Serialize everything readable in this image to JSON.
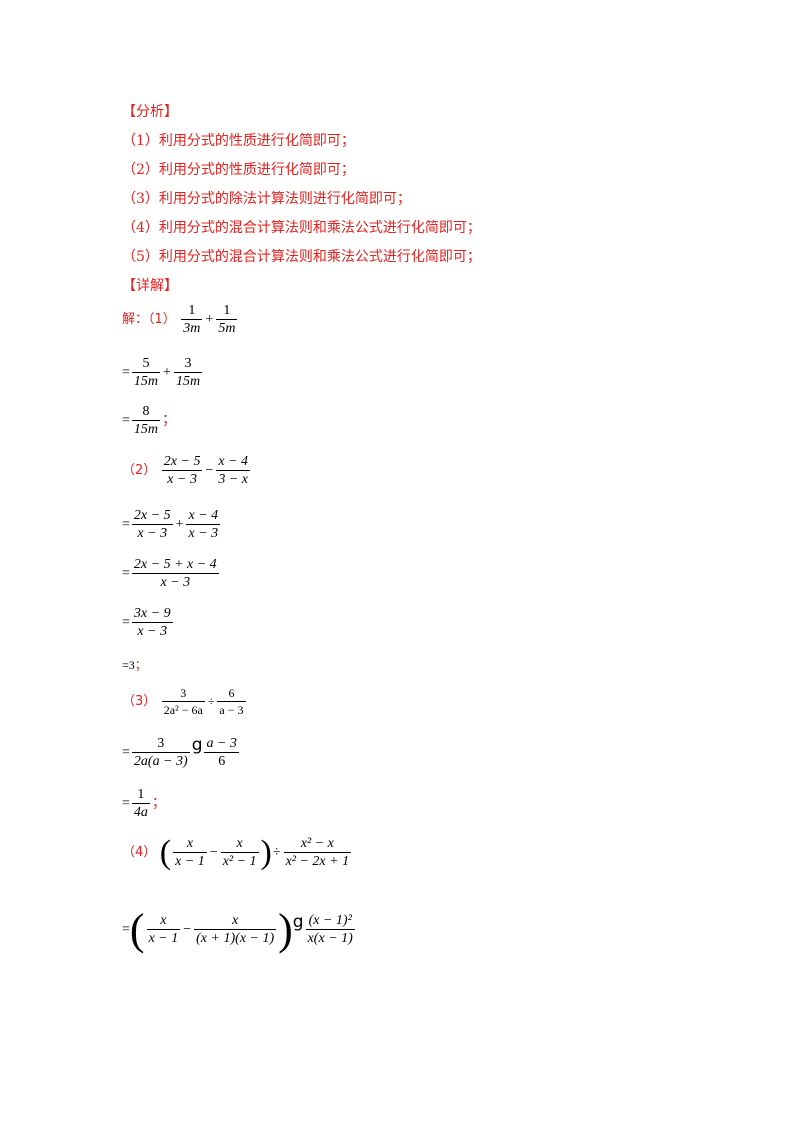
{
  "analysis_heading": "【分析】",
  "analysis_items": [
    "（1）利用分式的性质进行化简即可；",
    "（2）利用分式的性质进行化简即可；",
    "（3）利用分式的除法计算法则进行化简即可；",
    "（4）利用分式的混合计算法则和乘法公式进行化简即可；",
    "（5）利用分式的混合计算法则和乘法公式进行化简即可；"
  ],
  "detail_heading": "【详解】",
  "solution_prefix": "解：",
  "labels": {
    "p1": "（1）",
    "p2": "（2）",
    "p3": "（3）",
    "p4": "（4）"
  },
  "semicolon": "；",
  "eq": "=",
  "p1": {
    "a_num": "1",
    "a_den": "3m",
    "b_num": "1",
    "b_den": "5m",
    "s1_a_num": "5",
    "s1_a_den": "15m",
    "s1_b_num": "3",
    "s1_b_den": "15m",
    "s2_num": "8",
    "s2_den": "15m"
  },
  "p2": {
    "a_num": "2x − 5",
    "a_den": "x − 3",
    "b_num": "x − 4",
    "b_den": "3 − x",
    "s1_a_num": "2x − 5",
    "s1_a_den": "x − 3",
    "s1_b_num": "x − 4",
    "s1_b_den": "x − 3",
    "s2_num": "2x − 5 + x − 4",
    "s2_den": "x − 3",
    "s3_num": "3x − 9",
    "s3_den": "x − 3",
    "s4": "3"
  },
  "p3": {
    "a_num": "3",
    "a_den": "2a² − 6a",
    "b_num": "6",
    "b_den": "a − 3",
    "s1_a_num": "3",
    "s1_a_den": "2a(a − 3)",
    "s1_b_num": "a − 3",
    "s1_b_den": "6",
    "s2_num": "1",
    "s2_den": "4a"
  },
  "p4": {
    "a_num": "x",
    "a_den": "x − 1",
    "b_num": "x",
    "b_den": "x² − 1",
    "c_num": "x² − x",
    "c_den": "x² − 2x + 1",
    "s1_a_num": "x",
    "s1_a_den": "x − 1",
    "s1_b_num": "x",
    "s1_b_den": "(x + 1)(x − 1)",
    "s1_c_num": "(x − 1)²",
    "s1_c_den": "x(x − 1)"
  },
  "ops": {
    "plus": "+",
    "minus": "−",
    "div": "÷",
    "dot": "g"
  },
  "colors": {
    "accent": "#e8201e"
  }
}
